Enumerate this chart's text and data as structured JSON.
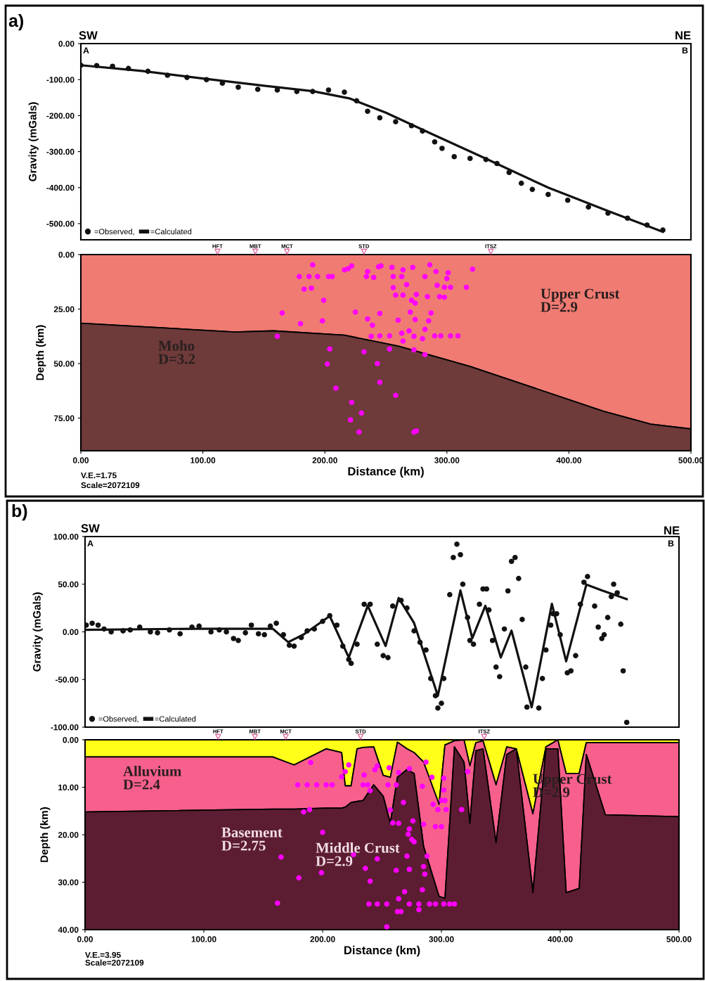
{
  "chart_data": [
    {
      "type": "scatter",
      "ylabel": "Gravity (mGals)",
      "xlim": [
        0,
        500
      ],
      "ylim": [
        -545,
        0
      ],
      "tick_labels": "y",
      "legend": "bottom left",
      "yticks": [
        {
          "value": 0,
          "label": "0.00"
        },
        {
          "value": -100,
          "label": "-100.00"
        },
        {
          "value": -200,
          "label": "-200.00"
        },
        {
          "value": -300,
          "label": "-300.00"
        },
        {
          "value": -400,
          "label": "-400.00"
        },
        {
          "value": -500,
          "label": "-500.00"
        }
      ],
      "annotations": [
        "a)",
        "SW",
        "NE",
        "A",
        "B"
      ],
      "series": [
        {
          "name": "=Observed,",
          "marker": "circle",
          "color": "#111111",
          "x": [
            0,
            13,
            26,
            39,
            55,
            71,
            87,
            103,
            116,
            129,
            145,
            161,
            177,
            190,
            203,
            216,
            226,
            235,
            245,
            258,
            271,
            280,
            290,
            296,
            306,
            319,
            332,
            341,
            351,
            361,
            370,
            383,
            399,
            416,
            432,
            448,
            464,
            477
          ],
          "values": [
            -60,
            -61,
            -63,
            -69,
            -77,
            -88,
            -94,
            -100,
            -110,
            -121,
            -127,
            -129,
            -133,
            -133,
            -129,
            -135,
            -159,
            -188,
            -206,
            -217,
            -228,
            -243,
            -273,
            -291,
            -314,
            -319,
            -322,
            -333,
            -358,
            -388,
            -405,
            -419,
            -435,
            -454,
            -471,
            -485,
            -504,
            -518
          ]
        },
        {
          "name": "=Calculated",
          "type": "line",
          "color": "#111111",
          "x": [
            0,
            50,
            100,
            150,
            190,
            220,
            250,
            287,
            329,
            383,
            432,
            477
          ],
          "values": [
            -60,
            -76,
            -97,
            -117,
            -132,
            -152,
            -192,
            -250,
            -315,
            -400,
            -465,
            -523
          ]
        }
      ]
    },
    {
      "type": "area",
      "stacked": true,
      "xlabel": "Distance (km)",
      "ylabel": "Depth (km)",
      "xlim": [
        0,
        500
      ],
      "ylim": [
        90,
        0
      ],
      "xticks": [
        {
          "value": 0,
          "label": "0.00"
        },
        {
          "value": 100,
          "label": "100.00"
        },
        {
          "value": 200,
          "label": "200.00"
        },
        {
          "value": 300,
          "label": "300.00"
        },
        {
          "value": 400,
          "label": "400.00"
        },
        {
          "value": 500,
          "label": "500.00"
        }
      ],
      "yticks": [
        {
          "value": 0,
          "label": "0.00"
        },
        {
          "value": 25,
          "label": "25.00"
        },
        {
          "value": 50,
          "label": "50.00"
        },
        {
          "value": 75,
          "label": "75.00"
        }
      ],
      "annotations": [
        {
          "text": "HFT",
          "x": 112,
          "y": 0
        },
        {
          "text": "MBT",
          "x": 143,
          "y": 0
        },
        {
          "text": "MCT",
          "x": 169,
          "y": 0
        },
        {
          "text": "STD",
          "x": 232,
          "y": 0
        },
        {
          "text": "ITSZ",
          "x": 336,
          "y": 0
        },
        "Upper Crust\nD=2.9",
        "Moho\nD=3.2",
        "V.E.=1.75",
        "Scale=2072109"
      ],
      "series": [
        {
          "color": "#ef7b72",
          "x": [
            0,
            126,
            158,
            216,
            260,
            319,
            428,
            467,
            500
          ],
          "values": [
            31.5,
            35.5,
            35,
            37,
            42,
            51.3,
            71.8,
            77.8,
            80
          ]
        },
        {
          "color": "#6e3a3a",
          "x": [
            0,
            126,
            158,
            216,
            260,
            319,
            428,
            467,
            500
          ],
          "values": [
            58.5,
            54.5,
            55,
            53,
            48,
            38.7,
            18.2,
            12.2,
            10
          ]
        },
        {
          "type": "scatter",
          "marker": "circle",
          "color": "#ff00ff",
          "x": [
            190,
            179,
            187,
            194,
            203,
            206,
            183,
            189,
            199,
            165,
            180,
            198,
            161,
            216,
            222,
            219,
            234,
            235,
            240,
            244,
            246,
            255,
            256,
            263,
            264,
            272,
            282,
            286,
            291,
            301,
            300,
            321,
            316,
            292,
            298,
            303,
            256,
            267,
            258,
            264,
            275,
            271,
            274,
            284,
            294,
            298,
            225,
            245,
            235,
            239,
            260,
            270,
            274,
            287,
            285,
            238,
            245,
            253,
            263,
            269,
            273,
            282,
            280,
            264,
            290,
            295,
            303,
            309,
            232,
            253,
            273,
            282,
            204,
            202,
            243,
            209,
            245,
            258,
            222,
            230,
            221,
            228,
            273,
            275
          ],
          "values": [
            4.7,
            10.1,
            10.1,
            10.1,
            10.1,
            10.1,
            15.9,
            15.4,
            21,
            26.8,
            31.7,
            30.4,
            37.5,
            7,
            5.2,
            6.5,
            10.1,
            7.8,
            10.5,
            5.6,
            5.2,
            5.9,
            10.1,
            10.1,
            7,
            5.9,
            10.1,
            4.7,
            7.8,
            8.3,
            11,
            6.7,
            15,
            14.1,
            15,
            15,
            15.2,
            13.8,
            18.6,
            18.6,
            18.3,
            21,
            22.3,
            19.3,
            19.3,
            19.6,
            26.4,
            27,
            29.5,
            32.4,
            30.1,
            26.4,
            29.8,
            26.8,
            30.4,
            37.5,
            37.3,
            37.3,
            36.1,
            35,
            37.5,
            34.3,
            38.6,
            39.7,
            37.3,
            37.3,
            37.3,
            37.3,
            44.6,
            43.3,
            43.7,
            45.9,
            43.3,
            50.2,
            50,
            61.3,
            58.6,
            64.6,
            67.8,
            72.7,
            75.8,
            81.4,
            81.4,
            80.9
          ]
        }
      ]
    },
    {
      "type": "scatter",
      "ylabel": "Gravity (mGals)",
      "xlim": [
        0,
        500
      ],
      "ylim": [
        -100,
        100
      ],
      "tick_labels": "y",
      "legend": "bottom left",
      "yticks": [
        {
          "value": 100,
          "label": "100.00"
        },
        {
          "value": 50,
          "label": "50.00"
        },
        {
          "value": 0,
          "label": "0.00"
        },
        {
          "value": -50,
          "label": "-50.00"
        },
        {
          "value": -100,
          "label": "-100.00"
        }
      ],
      "annotations": [
        "b)",
        "SW",
        "NE",
        "A",
        "B"
      ],
      "series": [
        {
          "name": "=Observed,",
          "marker": "circle",
          "color": "#111111",
          "x": [
            1,
            6,
            11,
            16,
            22,
            32,
            38,
            46,
            55,
            61,
            71,
            80,
            90,
            96,
            106,
            113,
            119,
            125,
            129,
            135,
            140,
            146,
            151,
            156,
            161,
            167,
            172,
            176,
            182,
            187,
            193,
            200,
            206,
            212,
            217,
            222,
            224,
            229,
            235,
            240,
            246,
            251,
            255,
            259,
            266,
            271,
            277,
            282,
            287,
            291,
            295,
            297,
            300,
            302,
            307,
            310,
            313,
            316,
            318,
            322,
            324,
            327,
            332,
            335,
            338,
            340,
            343,
            346,
            349,
            353,
            356,
            359,
            362,
            365,
            368,
            371,
            372,
            382,
            385,
            388,
            392,
            394,
            397,
            400,
            406,
            409,
            413,
            417,
            420,
            423,
            429,
            432,
            435,
            437,
            440,
            443,
            445,
            448,
            451,
            453,
            456
          ],
          "values": [
            7,
            9,
            7,
            3,
            0,
            1,
            2,
            5,
            0,
            -1,
            2,
            -2,
            5,
            6,
            0,
            2,
            0,
            -7,
            -9,
            -1,
            7,
            -2,
            -3,
            6,
            9,
            -3,
            -14,
            -15,
            -6,
            1,
            3,
            11,
            17,
            7,
            -15,
            -29,
            -33,
            -13,
            29,
            29,
            -13,
            -25,
            -27,
            27,
            33,
            25,
            1,
            -11,
            -19,
            -49,
            -67,
            -80,
            -75,
            -49,
            39,
            78,
            92,
            81,
            50,
            15,
            -9,
            -13,
            29,
            45,
            45,
            23,
            -9,
            -37,
            -47,
            3,
            43,
            74,
            78,
            56,
            13,
            -37,
            -79,
            -80,
            -49,
            -19,
            7,
            19,
            19,
            -3,
            -43,
            -41,
            -25,
            29,
            52,
            58,
            27,
            5,
            -7,
            -3,
            15,
            37,
            50,
            41,
            8,
            -41,
            -95
          ]
        },
        {
          "name": "=Calculated",
          "type": "line",
          "color": "#111111",
          "x": [
            0,
            93,
            158,
            171,
            184,
            206,
            222,
            238,
            253,
            264,
            277,
            297,
            316,
            326,
            337,
            350,
            359,
            376,
            393,
            405,
            422,
            435,
            456
          ],
          "values": [
            2.1,
            3.3,
            3.3,
            -10.8,
            -2.8,
            16.6,
            -26.9,
            27.4,
            -14.8,
            35.5,
            9.3,
            -67.1,
            43.5,
            -6.8,
            27.4,
            -26.9,
            1.3,
            -79.2,
            29.4,
            -30.9,
            49.6,
            43.5,
            34.3
          ]
        }
      ]
    },
    {
      "type": "area",
      "stacked": true,
      "xlabel": "Distance (km)",
      "ylabel": "Depth (km)",
      "xlim": [
        0,
        500
      ],
      "ylim": [
        40,
        0
      ],
      "xticks": [
        {
          "value": 0,
          "label": "0.00"
        },
        {
          "value": 100,
          "label": "100.00"
        },
        {
          "value": 200,
          "label": "200.00"
        },
        {
          "value": 300,
          "label": "300.00"
        },
        {
          "value": 400,
          "label": "400.00"
        },
        {
          "value": 500,
          "label": "500.00"
        }
      ],
      "yticks": [
        {
          "value": 0,
          "label": "0.00"
        },
        {
          "value": 10,
          "label": "10.00"
        },
        {
          "value": 20,
          "label": "20.00"
        },
        {
          "value": 30,
          "label": "30.00"
        },
        {
          "value": 40,
          "label": "40.00"
        }
      ],
      "annotations": [
        {
          "text": "HFT",
          "x": 112,
          "y": 0
        },
        {
          "text": "MBT",
          "x": 143,
          "y": 0
        },
        {
          "text": "MCT",
          "x": 169,
          "y": 0
        },
        {
          "text": "STD",
          "x": 232,
          "y": 0
        },
        {
          "text": "ITSZ",
          "x": 336,
          "y": 0
        },
        "Alluvium\nD=2.4",
        "Basement\nD=2.75",
        "Middle Crust\nD=2.9",
        "Upper Crust\nD=2.9",
        "V.E.=3.95",
        "Scale=2072109"
      ],
      "series": [
        {
          "color": "#ffff1a",
          "x": [
            0,
            158,
            176,
            203,
            216,
            219,
            224,
            229,
            234,
            243,
            251,
            257,
            263,
            271,
            277,
            285,
            298,
            303,
            311,
            319,
            324,
            329,
            335,
            346,
            355,
            363,
            377,
            388,
            398,
            405,
            416,
            422,
            438,
            500
          ],
          "values": [
            3.6,
            3.6,
            5.3,
            1.9,
            2.7,
            9.7,
            9.7,
            1.9,
            1.6,
            1.5,
            7.5,
            7.9,
            0.5,
            1.9,
            2.7,
            4.7,
            13.6,
            1.1,
            0.2,
            0,
            5.5,
            0.6,
            0.2,
            9.5,
            1.5,
            1.9,
            15.6,
            1.5,
            0,
            7.1,
            7.1,
            0.6,
            0.6,
            0.6
          ]
        },
        {
          "color": "#f7608c",
          "x": [
            0,
            158,
            176,
            203,
            216,
            219,
            224,
            229,
            234,
            243,
            251,
            257,
            263,
            271,
            277,
            285,
            298,
            303,
            311,
            319,
            324,
            329,
            335,
            346,
            355,
            363,
            377,
            388,
            398,
            405,
            416,
            422,
            438,
            500
          ],
          "values": [
            11.6,
            11.0,
            9.3,
            12.5,
            11.7,
            4.5,
            3.5,
            11.1,
            11.2,
            8.0,
            4.4,
            9.7,
            7.4,
            4.4,
            4.4,
            17.8,
            19.4,
            32.3,
            1.3,
            4.7,
            12.1,
            1.7,
            1.7,
            12.2,
            1.6,
            0,
            16.6,
            0.4,
            1.9,
            25.1,
            24.2,
            2.5,
            15.2,
            15.6
          ]
        },
        {
          "color": "#5c1d32",
          "x": [
            0,
            158,
            176,
            203,
            216,
            219,
            224,
            229,
            234,
            243,
            251,
            257,
            263,
            271,
            277,
            285,
            298,
            303,
            311,
            319,
            324,
            329,
            335,
            346,
            355,
            363,
            377,
            388,
            398,
            405,
            416,
            422,
            438,
            500
          ],
          "values": [
            24.8,
            25.4,
            25.4,
            25.6,
            25.6,
            25.8,
            26.8,
            27,
            27.2,
            30.5,
            28.1,
            22.4,
            32.1,
            33.7,
            32.9,
            17.5,
            7,
            6.6,
            38.5,
            35.3,
            22.4,
            37.7,
            38.1,
            18.3,
            36.9,
            38.1,
            7.8,
            38.1,
            38.1,
            7.8,
            8.7,
            36.9,
            24.2,
            23.8
          ]
        },
        {
          "type": "scatter",
          "marker": "circle",
          "color": "#ff00ff",
          "x": [
            190,
            179,
            187,
            195,
            203,
            208,
            184,
            189,
            200,
            165,
            180,
            199,
            162,
            216,
            219,
            222,
            235,
            244,
            246,
            256,
            264,
            273,
            287,
            234,
            238,
            240,
            255,
            262,
            284,
            292,
            302,
            322,
            302,
            300,
            303,
            293,
            297,
            304,
            317,
            257,
            268,
            259,
            264,
            276,
            285,
            295,
            300,
            273,
            272,
            275,
            277,
            271,
            288,
            226,
            246,
            236,
            262,
            273,
            285,
            286,
            240,
            284,
            269,
            264,
            239,
            246,
            254,
            273,
            281,
            290,
            295,
            302,
            307,
            311,
            281,
            263,
            266,
            254
          ],
          "values": [
            4.8,
            9.5,
            9.5,
            9.5,
            9.5,
            9.5,
            15.2,
            14.7,
            19.5,
            24.7,
            29.1,
            28,
            34.4,
            7.8,
            6.7,
            5.3,
            7.4,
            6.3,
            5.5,
            5.9,
            6.9,
            6.1,
            4.7,
            9.5,
            9.5,
            10.7,
            9.5,
            9.5,
            9.8,
            7.9,
            8.1,
            6.7,
            10.6,
            12.8,
            12.8,
            13.6,
            14.7,
            14.7,
            14.7,
            14.8,
            13.2,
            17.5,
            17.6,
            17.1,
            17.8,
            18.3,
            18.3,
            18.8,
            19.9,
            21,
            21.5,
            24.5,
            24.5,
            24.2,
            25.1,
            27.1,
            27.5,
            27.3,
            26.7,
            28.3,
            29.8,
            31.6,
            32,
            33.5,
            34.6,
            34.6,
            34.6,
            34.6,
            34.6,
            34.6,
            34.6,
            34.6,
            34.6,
            34.6,
            35.8,
            36.2,
            36.2,
            39.4
          ]
        }
      ]
    }
  ]
}
